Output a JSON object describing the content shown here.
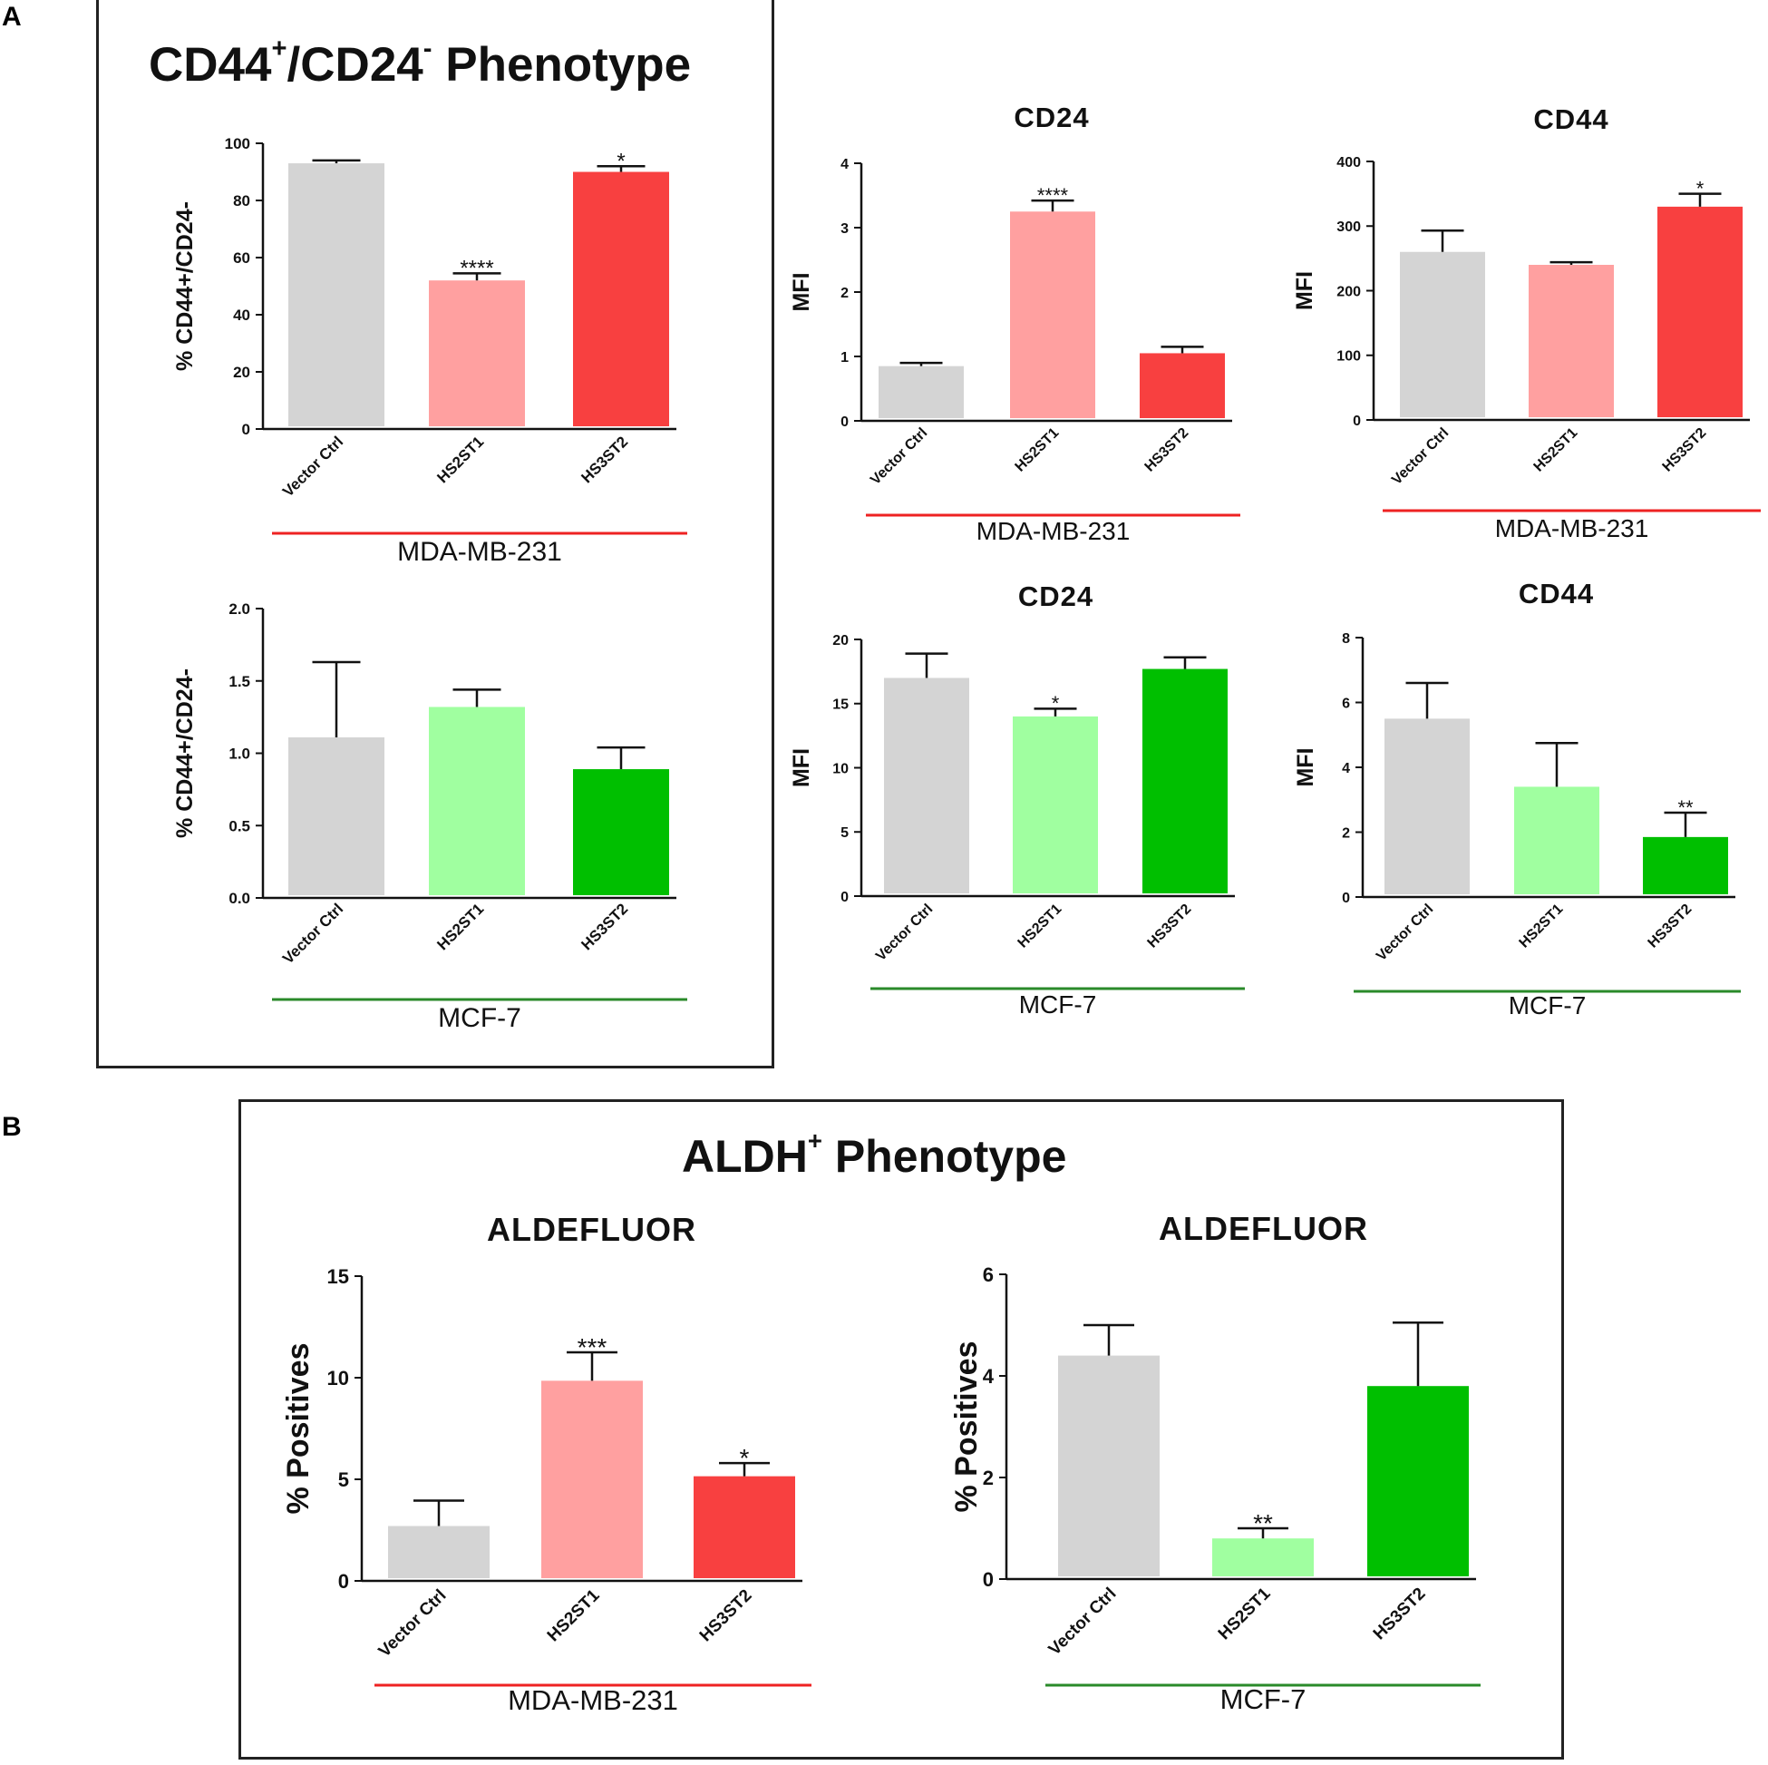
{
  "panels": {
    "a": {
      "letter": "A",
      "title_main": "CD44",
      "title_sup1": "+",
      "title_mid": "/CD24",
      "title_sup2": "-",
      "title_end": " Phenotype"
    },
    "b": {
      "letter": "B",
      "title_main": "ALDH",
      "title_sup": "+",
      "title_end": " Phenotype"
    }
  },
  "colors": {
    "gray": "#d4d4d4",
    "pink": "#ffa0a0",
    "red": "#f84040",
    "lightgreen": "#a0ffa0",
    "green": "#00bf00",
    "redline": "#ee2222",
    "greenline": "#2a8a2a"
  },
  "chart_data": [
    {
      "id": "a-mda-pct",
      "type": "bar",
      "title": "",
      "ylabel": "% CD44+/CD24-",
      "ylim": [
        0,
        100
      ],
      "yticks": [
        "0",
        "20",
        "40",
        "60",
        "80",
        "100"
      ],
      "categories": [
        "Vector Ctrl",
        "HS2ST1",
        "HS3ST2"
      ],
      "values": [
        93,
        52,
        90
      ],
      "errors": [
        1,
        2.5,
        2
      ],
      "sig": [
        "",
        "****",
        "*"
      ],
      "cell_line": "MDA-MB-231",
      "palette": [
        "gray",
        "pink",
        "red"
      ],
      "line": "redline"
    },
    {
      "id": "a-mda-cd24",
      "type": "bar",
      "title": "CD24",
      "ylabel": "MFI",
      "ylim": [
        0,
        4
      ],
      "yticks": [
        "0",
        "1",
        "2",
        "3",
        "4"
      ],
      "categories": [
        "Vector Ctrl",
        "HS2ST1",
        "HS3ST2"
      ],
      "values": [
        0.85,
        3.25,
        1.05
      ],
      "errors": [
        0.05,
        0.17,
        0.1
      ],
      "sig": [
        "",
        "****",
        ""
      ],
      "cell_line": "MDA-MB-231",
      "palette": [
        "gray",
        "pink",
        "red"
      ],
      "line": "redline"
    },
    {
      "id": "a-mda-cd44",
      "type": "bar",
      "title": "CD44",
      "ylabel": "MFI",
      "ylim": [
        0,
        400
      ],
      "yticks": [
        "0",
        "100",
        "200",
        "300",
        "400"
      ],
      "categories": [
        "Vector Ctrl",
        "HS2ST1",
        "HS3ST2"
      ],
      "values": [
        260,
        240,
        330
      ],
      "errors": [
        33,
        4,
        20
      ],
      "sig": [
        "",
        "",
        "*"
      ],
      "cell_line": "MDA-MB-231",
      "palette": [
        "gray",
        "pink",
        "red"
      ],
      "line": "redline"
    },
    {
      "id": "a-mcf-pct",
      "type": "bar",
      "title": "",
      "ylabel": "% CD44+/CD24-",
      "ylim": [
        0,
        2
      ],
      "yticks": [
        "0.0",
        "0.5",
        "1.0",
        "1.5",
        "2.0"
      ],
      "categories": [
        "Vector Ctrl",
        "HS2ST1",
        "HS3ST2"
      ],
      "values": [
        1.11,
        1.32,
        0.89
      ],
      "errors": [
        0.52,
        0.12,
        0.15
      ],
      "sig": [
        "",
        "",
        ""
      ],
      "cell_line": "MCF-7",
      "palette": [
        "gray",
        "lightgreen",
        "green"
      ],
      "line": "greenline"
    },
    {
      "id": "a-mcf-cd24",
      "type": "bar",
      "title": "CD24",
      "ylabel": "MFI",
      "ylim": [
        0,
        20
      ],
      "yticks": [
        "0",
        "5",
        "10",
        "15",
        "20"
      ],
      "categories": [
        "Vector Ctrl",
        "HS2ST1",
        "HS3ST2"
      ],
      "values": [
        17,
        14,
        17.7
      ],
      "errors": [
        1.9,
        0.6,
        0.9
      ],
      "sig": [
        "",
        "*",
        ""
      ],
      "cell_line": "MCF-7",
      "palette": [
        "gray",
        "lightgreen",
        "green"
      ],
      "line": "greenline"
    },
    {
      "id": "a-mcf-cd44",
      "type": "bar",
      "title": "CD44",
      "ylabel": "MFI",
      "ylim": [
        0,
        8
      ],
      "yticks": [
        "0",
        "2",
        "4",
        "6",
        "8"
      ],
      "categories": [
        "Vector Ctrl",
        "HS2ST1",
        "HS3ST2"
      ],
      "values": [
        5.5,
        3.4,
        1.85
      ],
      "errors": [
        1.1,
        1.35,
        0.75
      ],
      "sig": [
        "",
        "",
        "**"
      ],
      "cell_line": "MCF-7",
      "palette": [
        "gray",
        "lightgreen",
        "green"
      ],
      "line": "greenline"
    },
    {
      "id": "b-mda",
      "type": "bar",
      "title": "ALDEFLUOR",
      "ylabel": "% Positives",
      "ylim": [
        0,
        15
      ],
      "yticks": [
        "0",
        "5",
        "10",
        "15"
      ],
      "categories": [
        "Vector Ctrl",
        "HS2ST1",
        "HS3ST2"
      ],
      "values": [
        2.7,
        9.85,
        5.15
      ],
      "errors": [
        1.25,
        1.4,
        0.65
      ],
      "sig": [
        "",
        "***",
        "*"
      ],
      "cell_line": "MDA-MB-231",
      "palette": [
        "gray",
        "pink",
        "red"
      ],
      "line": "redline"
    },
    {
      "id": "b-mcf",
      "type": "bar",
      "title": "ALDEFLUOR",
      "ylabel": "% Positives",
      "ylim": [
        0,
        6
      ],
      "yticks": [
        "0",
        "2",
        "4",
        "6"
      ],
      "categories": [
        "Vector Ctrl",
        "HS2ST1",
        "HS3ST2"
      ],
      "values": [
        4.4,
        0.8,
        3.8
      ],
      "errors": [
        0.6,
        0.2,
        1.25
      ],
      "sig": [
        "",
        "**",
        ""
      ],
      "cell_line": "MCF-7",
      "palette": [
        "gray",
        "lightgreen",
        "green"
      ],
      "line": "greenline"
    }
  ]
}
